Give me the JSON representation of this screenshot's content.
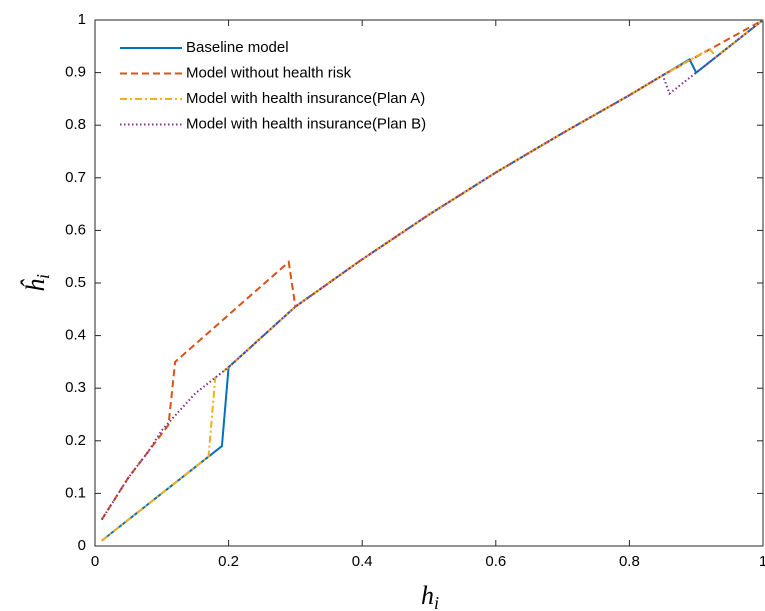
{
  "chart_data": {
    "type": "line",
    "xlabel": [
      "h",
      "i"
    ],
    "ylabel": [
      "ĥ",
      "i"
    ],
    "xlim": [
      0,
      1
    ],
    "ylim": [
      0,
      1
    ],
    "xticks": [
      0,
      0.2,
      0.4,
      0.6,
      0.8,
      1
    ],
    "yticks": [
      0,
      0.1,
      0.2,
      0.3,
      0.4,
      0.5,
      0.6,
      0.7,
      0.8,
      0.9,
      1
    ],
    "legend": "upper left",
    "series": [
      {
        "name": "Baseline model",
        "color": "#0072BD",
        "dash": "solid",
        "x": [
          0.01,
          0.19,
          0.2,
          0.3,
          0.4,
          0.5,
          0.6,
          0.7,
          0.8,
          0.85,
          0.89,
          0.9,
          0.93,
          1
        ],
        "values": [
          0.01,
          0.19,
          0.34,
          0.455,
          0.545,
          0.63,
          0.71,
          0.785,
          0.857,
          0.895,
          0.925,
          0.9,
          0.93,
          1
        ]
      },
      {
        "name": "Model without health risk",
        "color": "#D95319",
        "dash": "dashed",
        "x": [
          0.01,
          0.03,
          0.05,
          0.08,
          0.11,
          0.12,
          0.29,
          0.3,
          0.4,
          0.5,
          0.6,
          0.7,
          0.8,
          0.85,
          0.9,
          1
        ],
        "values": [
          0.05,
          0.09,
          0.13,
          0.18,
          0.23,
          0.35,
          0.54,
          0.455,
          0.545,
          0.63,
          0.71,
          0.785,
          0.857,
          0.895,
          0.93,
          1
        ]
      },
      {
        "name": "Model with health insurance(Plan A)",
        "color": "#EDB120",
        "dash": "dashdot",
        "x": [
          0.01,
          0.17,
          0.18,
          0.2,
          0.3,
          0.4,
          0.5,
          0.6,
          0.7,
          0.8,
          0.85,
          0.92,
          0.93,
          1
        ],
        "values": [
          0.01,
          0.17,
          0.32,
          0.34,
          0.455,
          0.545,
          0.63,
          0.71,
          0.785,
          0.857,
          0.895,
          0.945,
          0.93,
          1
        ]
      },
      {
        "name": "Model with health insurance(Plan B)",
        "color": "#7E2F8E",
        "dash": "dotted",
        "x": [
          0.01,
          0.03,
          0.05,
          0.08,
          0.1,
          0.15,
          0.2,
          0.3,
          0.4,
          0.5,
          0.6,
          0.7,
          0.8,
          0.85,
          0.86,
          0.9,
          1
        ],
        "values": [
          0.05,
          0.09,
          0.13,
          0.18,
          0.22,
          0.29,
          0.34,
          0.455,
          0.545,
          0.63,
          0.71,
          0.785,
          0.857,
          0.895,
          0.86,
          0.9,
          1
        ]
      }
    ]
  }
}
